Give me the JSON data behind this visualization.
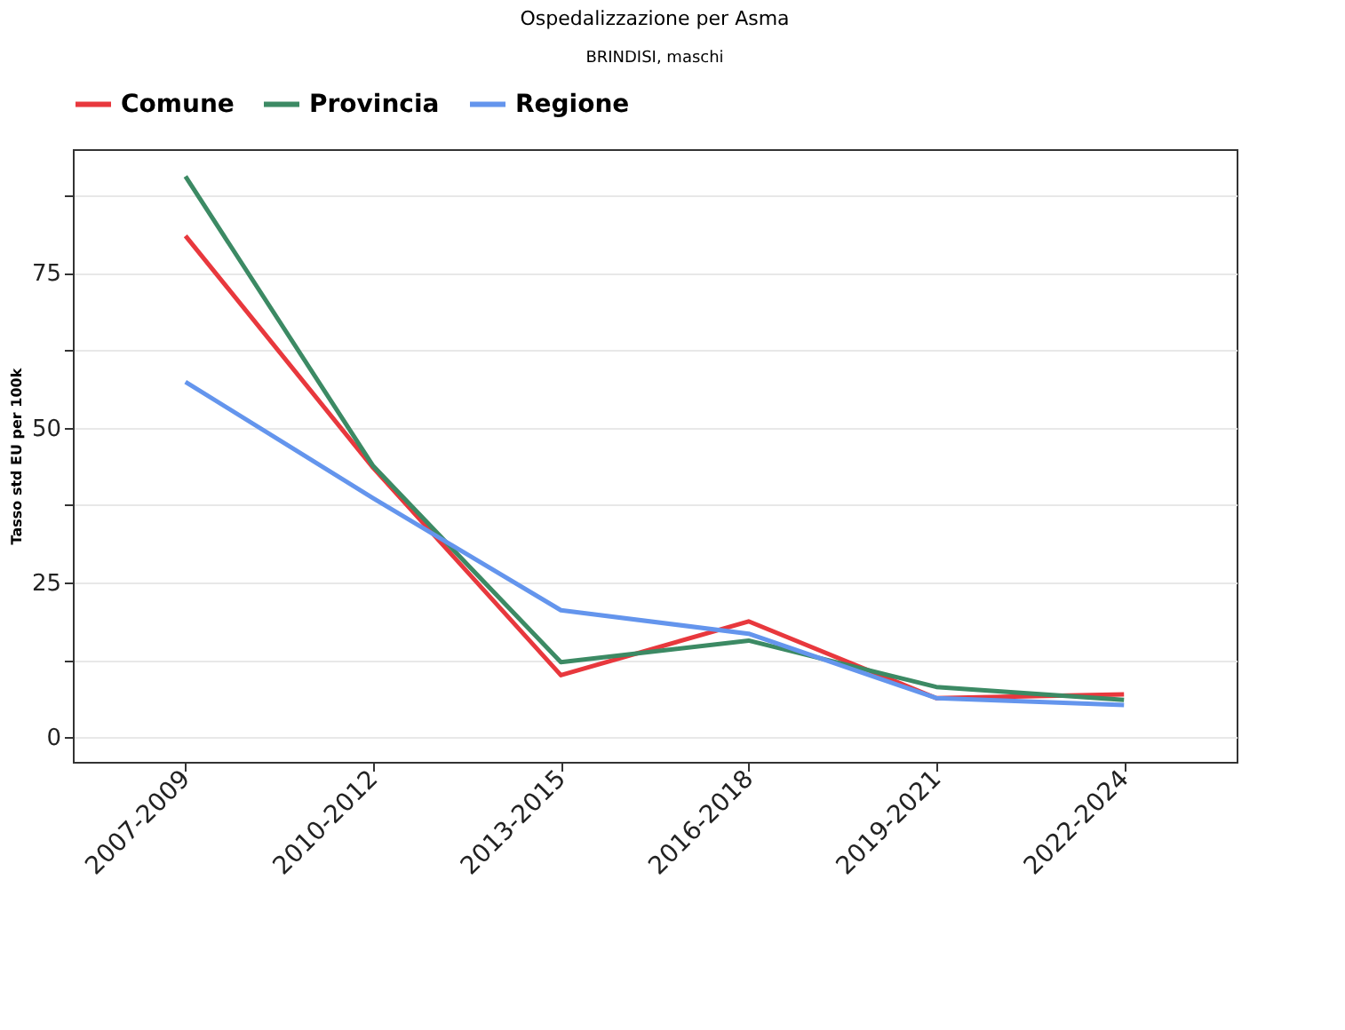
{
  "chart_data": {
    "type": "line",
    "title": "Ospedalizzazione per Asma",
    "subtitle": "BRINDISI, maschi",
    "ylabel": "Tasso std EU per 100k",
    "categories": [
      "2007-2009",
      "2010-2012",
      "2013-2015",
      "2016-2018",
      "2019-2021",
      "2022-2024"
    ],
    "series": [
      {
        "name": "Comune",
        "color": "#e8383d",
        "values": [
          81,
          43.5,
          10,
          18.7,
          6.3,
          6.9
        ]
      },
      {
        "name": "Provincia",
        "color": "#3c8a64",
        "values": [
          90.6,
          43.8,
          12.1,
          15.6,
          8.1,
          6
        ]
      },
      {
        "name": "Regione",
        "color": "#6495ed",
        "values": [
          57.4,
          38.6,
          20.5,
          16.7,
          6.3,
          5.2
        ]
      }
    ],
    "ylim": [
      -4,
      95
    ],
    "yticks": [
      0,
      {
        "value": 12.5,
        "label": null
      },
      25,
      {
        "value": 37.5,
        "label": null
      },
      50,
      {
        "value": 62.5,
        "label": null
      },
      75,
      {
        "value": 87.5,
        "label": null
      }
    ],
    "grid": "y",
    "legend": "top",
    "marker": "none",
    "line_style": "solid"
  }
}
